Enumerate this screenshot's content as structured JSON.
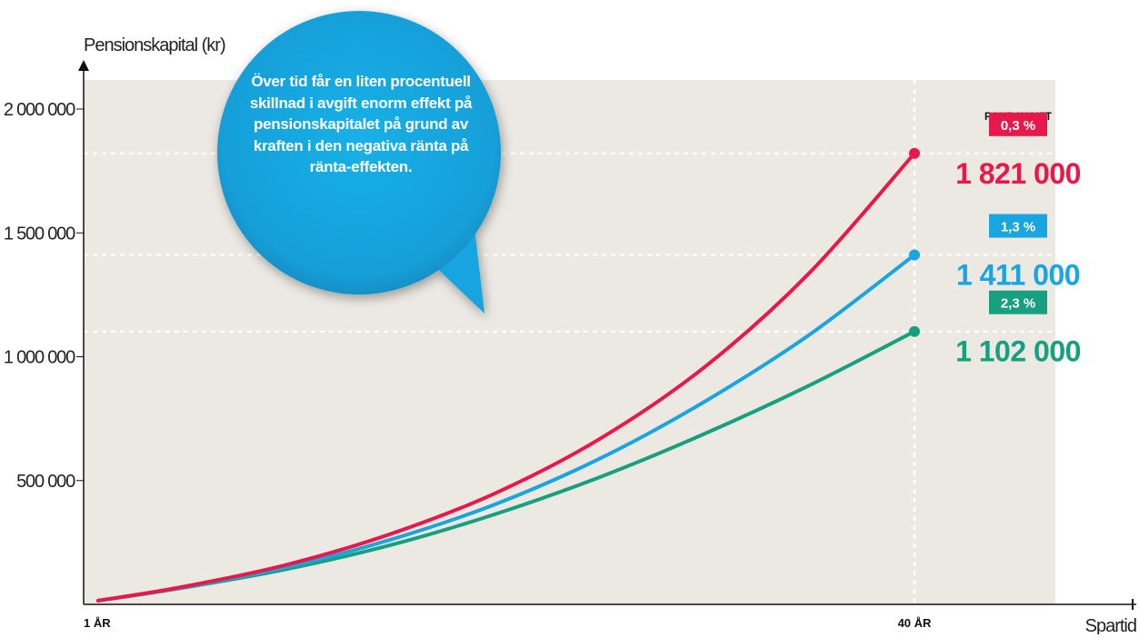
{
  "chart_data": {
    "type": "line",
    "ylabel": "Pensionskapital (kr)",
    "xlabel": "Spartid",
    "y_ticks": [
      {
        "value": 500000,
        "label": "500 000"
      },
      {
        "value": 1000000,
        "label": "1 000 000"
      },
      {
        "value": 1500000,
        "label": "1 500 000"
      },
      {
        "value": 2000000,
        "label": "2 000 000"
      }
    ],
    "x_ticks": [
      {
        "value": 1,
        "label": "1 ÅR"
      },
      {
        "value": 40,
        "label": "40 ÅR"
      }
    ],
    "xlim": [
      1,
      48
    ],
    "ylim": [
      0,
      2120000
    ],
    "grid": "dashed lines at end values and at 40 ÅR",
    "legend_title": "FONDAVGIFT",
    "series": [
      {
        "name": "0,3 %",
        "color": "#e8194a",
        "end_value": 1821000,
        "end_label": "1 821 000",
        "x": [
          1,
          5,
          10,
          15,
          20,
          25,
          30,
          35,
          40
        ],
        "y": [
          15000,
          70000,
          160000,
          285000,
          450000,
          670000,
          960000,
          1340000,
          1821000
        ]
      },
      {
        "name": "1,3 %",
        "color": "#19a5e0",
        "end_value": 1411000,
        "end_label": "1 411 000",
        "x": [
          1,
          5,
          10,
          15,
          20,
          25,
          30,
          35,
          40
        ],
        "y": [
          15000,
          68000,
          150000,
          262000,
          405000,
          590000,
          820000,
          1090000,
          1411000
        ]
      },
      {
        "name": "2,3 %",
        "color": "#16a07f",
        "end_value": 1102000,
        "end_label": "1 102 000",
        "x": [
          1,
          5,
          10,
          15,
          20,
          25,
          30,
          35,
          40
        ],
        "y": [
          15000,
          66000,
          142000,
          240000,
          365000,
          515000,
          690000,
          885000,
          1102000
        ]
      }
    ]
  },
  "callout": {
    "text": "Över tid får en liten procentuell skillnad i avgift enorm effekt på pensionskapitalet på grund av kraften i den negativa ränta på ränta-effekten.",
    "color": "#19a5e0"
  },
  "colors": {
    "plot_bg": "#ece9e3",
    "axis": "#111111"
  }
}
